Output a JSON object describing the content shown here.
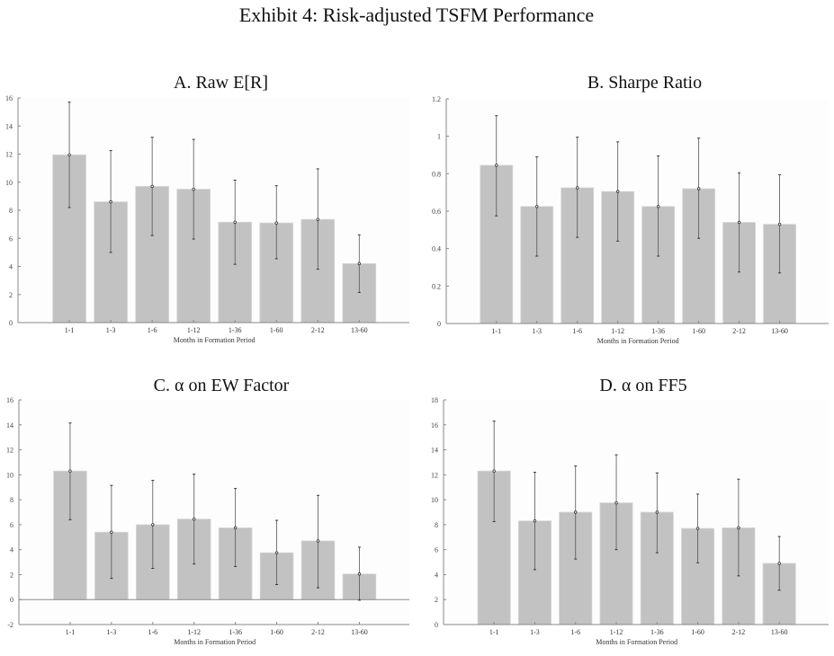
{
  "title": "Exhibit 4: Risk-adjusted TSFM Performance",
  "colors": {
    "bar": "#c2c2c2",
    "axis": "#888888",
    "errorbar": "#555555",
    "plot_bg": "#fdfdfd"
  },
  "chart_data": [
    {
      "type": "bar",
      "title": "A. Raw E[R]",
      "xlabel": "Months in Formation Period",
      "ylabel": "",
      "categories": [
        "1-1",
        "1-3",
        "1-6",
        "1-12",
        "1-36",
        "1-60",
        "2-12",
        "13-60"
      ],
      "values": [
        11.95,
        8.6,
        9.7,
        9.5,
        7.15,
        7.1,
        7.35,
        4.2
      ],
      "ci_low": [
        8.2,
        5.0,
        6.2,
        5.95,
        4.15,
        4.55,
        3.8,
        2.15
      ],
      "ci_high": [
        15.7,
        12.25,
        13.2,
        13.05,
        10.15,
        9.75,
        10.95,
        6.25
      ],
      "ylim": [
        0,
        16
      ],
      "yticks": [
        "0",
        "2",
        "4",
        "6",
        "8",
        "10",
        "12",
        "14",
        "16"
      ],
      "grid": false
    },
    {
      "type": "bar",
      "title": "B. Sharpe Ratio",
      "xlabel": "Months in Formation Period",
      "ylabel": "",
      "categories": [
        "1-1",
        "1-3",
        "1-6",
        "1-12",
        "1-36",
        "1-60",
        "2-12",
        "13-60"
      ],
      "values": [
        0.845,
        0.625,
        0.725,
        0.705,
        0.625,
        0.72,
        0.54,
        0.53
      ],
      "ci_low": [
        0.575,
        0.36,
        0.46,
        0.44,
        0.36,
        0.455,
        0.275,
        0.27
      ],
      "ci_high": [
        1.11,
        0.89,
        0.995,
        0.97,
        0.895,
        0.99,
        0.805,
        0.795
      ],
      "ylim": [
        0,
        1.2
      ],
      "yticks": [
        "0",
        "0.2",
        "0.4",
        "0.6",
        "0.8",
        "1",
        "1.2"
      ],
      "grid": false
    },
    {
      "type": "bar",
      "title": "C. α on EW Factor",
      "xlabel": "Months in Formation Period",
      "ylabel": "",
      "categories": [
        "1-1",
        "1-3",
        "1-6",
        "1-12",
        "1-36",
        "1-60",
        "2-12",
        "13-60"
      ],
      "values": [
        10.3,
        5.4,
        6.0,
        6.45,
        5.75,
        3.75,
        4.7,
        2.05
      ],
      "ci_low": [
        6.4,
        1.7,
        2.5,
        2.85,
        2.65,
        1.2,
        0.95,
        -0.05
      ],
      "ci_high": [
        14.15,
        9.15,
        9.55,
        10.05,
        8.9,
        6.35,
        8.35,
        4.2
      ],
      "ylim": [
        -2,
        16
      ],
      "yticks": [
        "-2",
        "0",
        "2",
        "4",
        "6",
        "8",
        "10",
        "12",
        "14",
        "16"
      ],
      "grid": false
    },
    {
      "type": "bar",
      "title": "D. α on FF5",
      "xlabel": "Months in Formation Period",
      "ylabel": "",
      "categories": [
        "1-1",
        "1-3",
        "1-6",
        "1-12",
        "1-36",
        "1-60",
        "2-12",
        "13-60"
      ],
      "values": [
        12.3,
        8.3,
        9.0,
        9.75,
        9.0,
        7.7,
        7.75,
        4.9
      ],
      "ci_low": [
        8.25,
        4.4,
        5.25,
        6.0,
        5.75,
        4.95,
        3.9,
        2.75
      ],
      "ci_high": [
        16.3,
        12.2,
        12.7,
        13.6,
        12.15,
        10.45,
        11.65,
        7.05
      ],
      "ylim": [
        0,
        18
      ],
      "yticks": [
        "0",
        "2",
        "4",
        "6",
        "8",
        "10",
        "12",
        "14",
        "16",
        "18"
      ],
      "grid": false
    }
  ]
}
